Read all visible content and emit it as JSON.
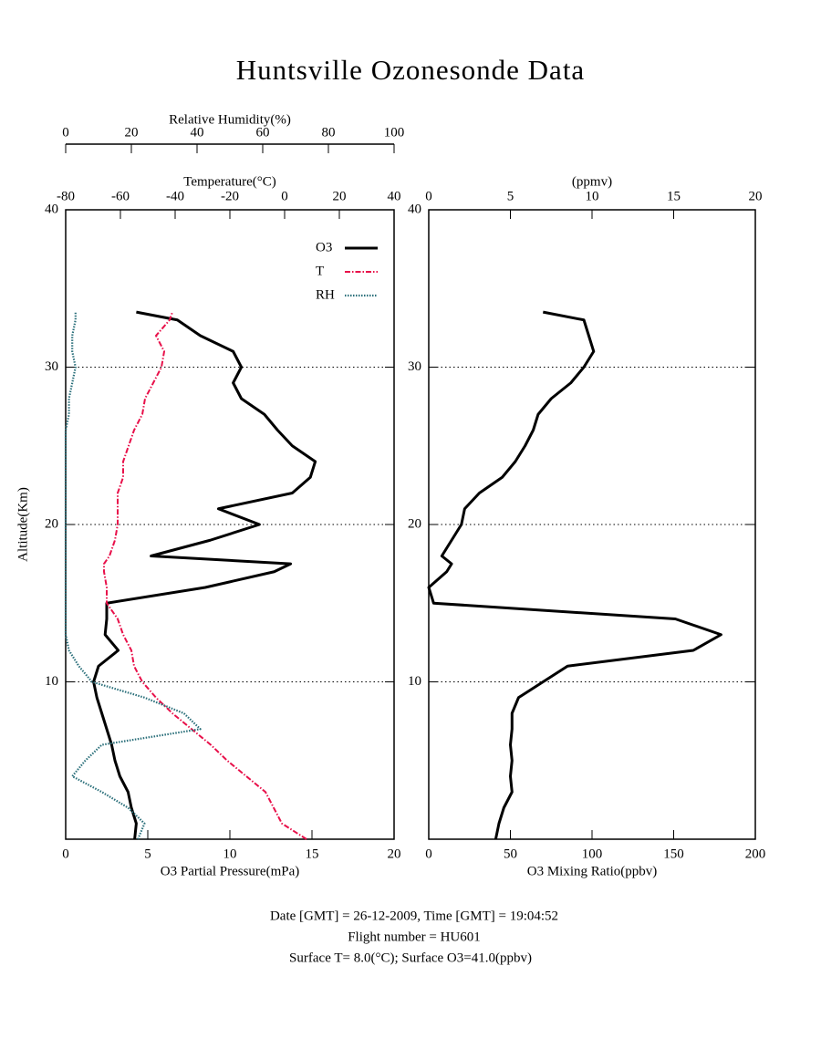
{
  "title": "Huntsville Ozonesonde Data",
  "footer": [
    "Date [GMT] = 26-12-2009,  Time [GMT] = 19:04:52",
    "Flight number = HU601",
    "Surface T= 8.0(°C); Surface O3=41.0(ppbv)"
  ],
  "chart_data": [
    {
      "type": "line",
      "ylabel": "Altitude(Km)",
      "ylim": [
        0,
        40
      ],
      "yticks": [
        10,
        20,
        30,
        40
      ],
      "grid": true,
      "xlabel": "O3 Partial Pressure(mPa)",
      "xlim": [
        0,
        20
      ],
      "xticks": [
        0,
        5,
        10,
        15,
        20
      ],
      "x2label": "Temperature(°C)",
      "x2lim": [
        -80,
        40
      ],
      "x2ticks": [
        -80,
        -60,
        -40,
        -20,
        0,
        20,
        40
      ],
      "x3label": "Relative Humidity(%)",
      "x3lim": [
        0,
        100
      ],
      "x3ticks": [
        0,
        20,
        40,
        60,
        80,
        100
      ],
      "legend": "upper right",
      "altitude": [
        0,
        1,
        2,
        3,
        4,
        5,
        6,
        7,
        8,
        9,
        10,
        11,
        12,
        13,
        14,
        15,
        16,
        17,
        17.5,
        18,
        19,
        20,
        21,
        22,
        23,
        24,
        25,
        26,
        27,
        28,
        29,
        30,
        31,
        32,
        33,
        33.5
      ],
      "series": [
        {
          "name": "O3",
          "color": "#000000",
          "axis": "x",
          "style": "solid",
          "values": [
            4.2,
            4.3,
            4.0,
            3.8,
            3.3,
            3.0,
            2.8,
            2.5,
            2.2,
            1.9,
            1.7,
            2.0,
            3.2,
            2.4,
            2.5,
            2.5,
            8.5,
            12.7,
            13.7,
            5.2,
            8.8,
            11.8,
            9.3,
            13.8,
            14.9,
            15.2,
            13.8,
            12.9,
            12.1,
            10.7,
            10.2,
            10.7,
            10.2,
            8.2,
            6.8,
            4.3
          ]
        },
        {
          "name": "T",
          "color": "#e8104a",
          "axis": "x2",
          "style": "dashdot",
          "values": [
            8,
            -1,
            -4,
            -7,
            -14,
            -21,
            -27,
            -34,
            -41,
            -47,
            -52,
            -55,
            -56,
            -59,
            -61,
            -65,
            -65,
            -66,
            -66,
            -64,
            -62,
            -61,
            -61,
            -61,
            -59,
            -59,
            -57,
            -55,
            -52,
            -51,
            -48,
            -45,
            -44,
            -47,
            -42,
            -41
          ]
        },
        {
          "name": "RH",
          "color": "#2a6f7a",
          "axis": "x3",
          "style": "dotted",
          "values": [
            22,
            24,
            19,
            11,
            2,
            6,
            11,
            41,
            36,
            24,
            8,
            4,
            1,
            0,
            0,
            0,
            0,
            0,
            0,
            0,
            0,
            0,
            0,
            0,
            0,
            0,
            0,
            0,
            1,
            1,
            2,
            3,
            2,
            2,
            3,
            3
          ]
        }
      ]
    },
    {
      "type": "line",
      "ylim": [
        0,
        40
      ],
      "yticks": [
        10,
        20,
        30,
        40
      ],
      "grid": true,
      "xlabel": "O3 Mixing Ratio(ppbv)",
      "xlim": [
        0,
        200
      ],
      "xticks": [
        0,
        50,
        100,
        150,
        200
      ],
      "x2label": "(ppmv)",
      "x2lim": [
        0,
        20
      ],
      "x2ticks": [
        0,
        5,
        10,
        15,
        20
      ],
      "altitude": [
        0,
        1,
        2,
        3,
        4,
        5,
        6,
        7,
        8,
        9,
        10,
        11,
        12,
        13,
        14,
        15,
        16,
        17,
        17.5,
        18,
        19,
        20,
        21,
        22,
        23,
        24,
        25,
        26,
        27,
        28,
        29,
        30,
        31,
        32,
        33,
        33.5
      ],
      "series": [
        {
          "color": "#000000",
          "axis": "x",
          "style": "solid",
          "values": [
            41,
            43,
            46,
            51,
            50,
            51,
            50,
            51,
            51,
            55,
            70,
            85,
            162,
            179,
            151,
            3,
            0,
            11,
            14,
            8,
            14,
            20,
            22,
            31,
            45,
            53,
            59,
            64,
            67,
            75,
            87,
            95,
            101,
            98,
            95,
            70
          ]
        }
      ]
    }
  ]
}
